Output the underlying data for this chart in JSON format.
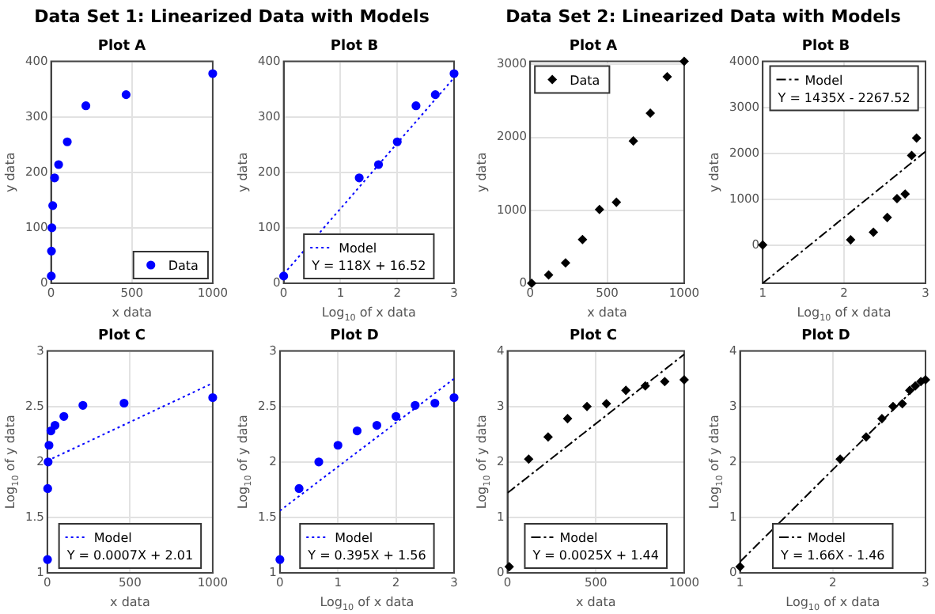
{
  "chart_data": [
    {
      "type": "scatter",
      "title": "Plot A",
      "xlabel": "x data",
      "ylabel": "y data",
      "xlim": [
        0,
        1000
      ],
      "ylim": [
        0,
        400
      ],
      "xticks": [
        0,
        500,
        1000
      ],
      "yticks": [
        0,
        100,
        200,
        300,
        400
      ],
      "grid": true,
      "legend": "bottom right",
      "marker": "circle",
      "annotations": [
        "Data Set 1: Linearized Data with Models"
      ],
      "series": [
        {
          "name": "Data",
          "type": "scatter",
          "color": "#0000ff",
          "x": [
            1,
            2.15,
            4.64,
            10,
            21.5,
            46.4,
            100,
            215,
            464,
            1000
          ],
          "values": [
            13,
            58,
            100,
            140,
            190,
            214,
            255,
            320,
            340,
            378
          ]
        }
      ]
    },
    {
      "type": "scatter",
      "title": "Plot B",
      "xlabel": "Log$_{10}$ of x data",
      "ylabel": "y data",
      "xlim": [
        0,
        3
      ],
      "ylim": [
        0,
        400
      ],
      "xticks": [
        0,
        1,
        2,
        3
      ],
      "yticks": [
        0,
        100,
        200,
        300,
        400
      ],
      "grid": true,
      "legend": "bottom",
      "marker": "circle",
      "line_style": "dotted",
      "annotations": [
        "Y = 118X + 16.52"
      ],
      "series": [
        {
          "type": "scatter",
          "color": "#0000ff",
          "x": [
            0,
            0.33,
            0.67,
            1,
            1.33,
            1.67,
            2,
            2.33,
            2.67,
            3
          ],
          "values": [
            13,
            null,
            null,
            null,
            190,
            214,
            255,
            320,
            340,
            378
          ]
        },
        {
          "name": "Model",
          "type": "line",
          "marker": "none",
          "color": "#0000ff",
          "x": [
            0,
            3
          ],
          "values": [
            16.52,
            370.52
          ]
        }
      ]
    },
    {
      "type": "scatter",
      "title": "Plot C",
      "xlabel": "x data",
      "ylabel": "Log$_{10}$ of y data",
      "xlim": [
        0,
        1000
      ],
      "ylim": [
        1,
        3
      ],
      "xticks": [
        0,
        500,
        1000
      ],
      "yticks": [
        1,
        1.5,
        2,
        2.5,
        3
      ],
      "grid": true,
      "legend": "bottom",
      "marker": "circle",
      "line_style": "dotted",
      "annotations": [
        "Y = 0.0007X + 2.01"
      ],
      "series": [
        {
          "type": "scatter",
          "color": "#0000ff",
          "x": [
            1,
            2.15,
            4.64,
            10,
            21.5,
            46.4,
            100,
            215,
            464,
            1000
          ],
          "values": [
            1.12,
            1.76,
            2,
            2.15,
            2.28,
            2.33,
            2.41,
            2.51,
            2.53,
            2.58
          ]
        },
        {
          "name": "Model",
          "type": "line",
          "marker": "none",
          "color": "#0000ff",
          "x": [
            0,
            1000
          ],
          "values": [
            2.01,
            2.71
          ]
        }
      ]
    },
    {
      "type": "scatter",
      "title": "Plot D",
      "xlabel": "Log$_{10}$ of x data",
      "ylabel": "Log$_{10}$ of y data",
      "xlim": [
        0,
        3
      ],
      "ylim": [
        1,
        3
      ],
      "xticks": [
        0,
        1,
        2,
        3
      ],
      "yticks": [
        1,
        1.5,
        2,
        2.5,
        3
      ],
      "grid": true,
      "legend": "bottom",
      "marker": "circle",
      "line_style": "dotted",
      "annotations": [
        "Y = 0.395X + 1.56"
      ],
      "series": [
        {
          "type": "scatter",
          "color": "#0000ff",
          "x": [
            0,
            0.33,
            0.67,
            1,
            1.33,
            1.67,
            2,
            2.33,
            2.67,
            3
          ],
          "values": [
            1.12,
            1.76,
            2,
            2.15,
            2.28,
            2.33,
            2.41,
            2.51,
            2.53,
            2.58
          ]
        },
        {
          "name": "Model",
          "type": "line",
          "marker": "none",
          "color": "#0000ff",
          "x": [
            0,
            3
          ],
          "values": [
            1.56,
            2.75
          ]
        }
      ]
    },
    {
      "type": "scatter",
      "title": "Plot A",
      "xlabel": "x data",
      "ylabel": "y data",
      "xlim": [
        0,
        1000
      ],
      "ylim": [
        0,
        3040
      ],
      "xticks": [
        0,
        500,
        1000
      ],
      "yticks": [
        0,
        1000,
        2000,
        3000
      ],
      "grid": true,
      "legend": "top left",
      "marker": "diamond",
      "annotations": [
        "Data Set 2: Linearized Data with Models"
      ],
      "series": [
        {
          "name": "Data",
          "type": "scatter",
          "color": "#000000",
          "x": [
            10,
            120,
            230,
            340,
            450,
            560,
            670,
            780,
            890,
            1000
          ],
          "values": [
            1,
            113,
            280,
            600,
            1010,
            1110,
            1950,
            2330,
            2830,
            3040
          ]
        }
      ]
    },
    {
      "type": "scatter",
      "title": "Plot B",
      "xlabel": "Log$_{10}$ of x data",
      "ylabel": "y data",
      "xlim": [
        1,
        3
      ],
      "ylim": [
        -833,
        4000
      ],
      "xticks": [
        1,
        2,
        3
      ],
      "yticks": [
        0,
        1000,
        2000,
        3000,
        4000
      ],
      "grid": true,
      "legend": "top",
      "marker": "diamond",
      "line_style": "dashed",
      "annotations": [
        "Y = 1435X - 2267.52"
      ],
      "series": [
        {
          "type": "scatter",
          "color": "#000000",
          "x": [
            1,
            2.08,
            2.36,
            2.53,
            2.65,
            2.75,
            2.83,
            2.89
          ],
          "values": [
            1,
            113,
            280,
            600,
            1010,
            1110,
            1950,
            2330
          ]
        },
        {
          "name": "Model",
          "type": "line",
          "marker": "none",
          "color": "#000000",
          "x": [
            1,
            3
          ],
          "values": [
            -832.52,
            2037.48
          ]
        }
      ]
    },
    {
      "type": "scatter",
      "title": "Plot C",
      "xlabel": "x data",
      "ylabel": "Log$_{10}$ of y data",
      "xlim": [
        0,
        1000
      ],
      "ylim": [
        0,
        4
      ],
      "xticks": [
        0,
        500,
        1000
      ],
      "yticks": [
        0,
        1,
        2,
        3,
        4
      ],
      "grid": true,
      "legend": "bottom",
      "marker": "diamond",
      "line_style": "dashed",
      "annotations": [
        "Y = 0.0025X + 1.44"
      ],
      "series": [
        {
          "type": "scatter",
          "color": "#000000",
          "x": [
            10,
            120,
            230,
            340,
            450,
            560,
            670,
            780,
            890,
            1000
          ],
          "values": [
            0.11,
            2.05,
            2.45,
            2.78,
            3,
            3.05,
            3.29,
            3.37,
            3.45,
            3.48
          ]
        },
        {
          "name": "Model",
          "type": "line",
          "marker": "none",
          "color": "#000000",
          "x": [
            0,
            1000
          ],
          "values": [
            1.44,
            3.94
          ]
        }
      ]
    },
    {
      "type": "scatter",
      "title": "Plot D",
      "xlabel": "Log$_{10}$ of x data",
      "ylabel": "Log$_{10}$ of y data",
      "xlim": [
        1,
        3
      ],
      "ylim": [
        0,
        4
      ],
      "xticks": [
        1,
        2,
        3
      ],
      "yticks": [
        0,
        1,
        2,
        3,
        4
      ],
      "grid": true,
      "legend": "bottom",
      "marker": "diamond",
      "line_style": "dashed",
      "annotations": [
        "Y = 1.66X - 1.46"
      ],
      "series": [
        {
          "type": "scatter",
          "color": "#000000",
          "x": [
            1,
            2.08,
            2.36,
            2.53,
            2.65,
            2.75,
            2.83,
            2.89,
            2.95,
            3
          ],
          "values": [
            0.11,
            2.05,
            2.45,
            2.78,
            3,
            3.05,
            3.29,
            3.37,
            3.45,
            3.48
          ]
        },
        {
          "name": "Model",
          "type": "line",
          "marker": "none",
          "color": "#000000",
          "x": [
            1,
            3
          ],
          "values": [
            0.2,
            3.52
          ]
        }
      ]
    }
  ]
}
